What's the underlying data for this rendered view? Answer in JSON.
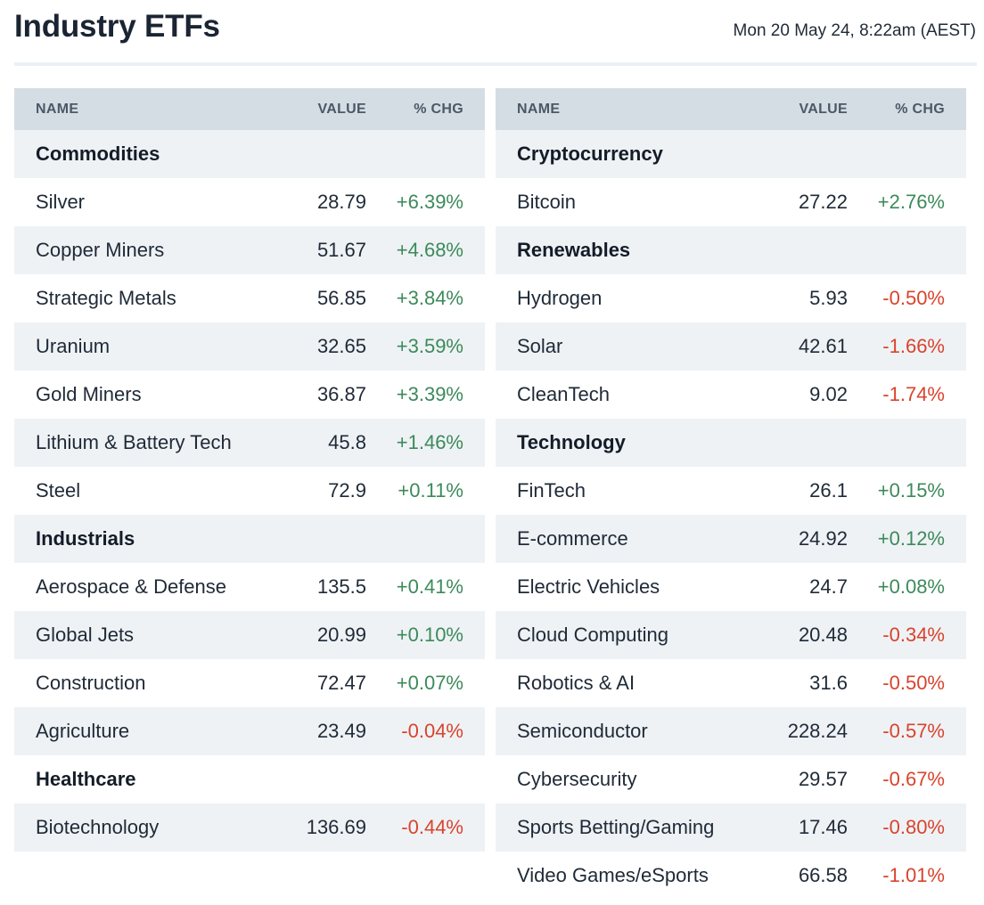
{
  "header": {
    "title": "Industry ETFs",
    "timestamp": "Mon 20 May 24, 8:22am (AEST)"
  },
  "columns": {
    "name": "NAME",
    "value": "VALUE",
    "chg": "% CHG"
  },
  "colors": {
    "positive": "#3c8a5a",
    "negative": "#d9432d",
    "header_bg": "#d5dde4",
    "row_shade": "#eef2f5"
  },
  "left": [
    {
      "type": "group",
      "name": "Commodities"
    },
    {
      "type": "item",
      "name": "Silver",
      "value": "28.79",
      "chg": "+6.39%"
    },
    {
      "type": "item",
      "name": "Copper Miners",
      "value": "51.67",
      "chg": "+4.68%"
    },
    {
      "type": "item",
      "name": "Strategic Metals",
      "value": "56.85",
      "chg": "+3.84%"
    },
    {
      "type": "item",
      "name": "Uranium",
      "value": "32.65",
      "chg": "+3.59%"
    },
    {
      "type": "item",
      "name": "Gold Miners",
      "value": "36.87",
      "chg": "+3.39%"
    },
    {
      "type": "item",
      "name": "Lithium & Battery Tech",
      "value": "45.8",
      "chg": "+1.46%"
    },
    {
      "type": "item",
      "name": "Steel",
      "value": "72.9",
      "chg": "+0.11%"
    },
    {
      "type": "group",
      "name": "Industrials"
    },
    {
      "type": "item",
      "name": "Aerospace & Defense",
      "value": "135.5",
      "chg": "+0.41%"
    },
    {
      "type": "item",
      "name": "Global Jets",
      "value": "20.99",
      "chg": "+0.10%"
    },
    {
      "type": "item",
      "name": "Construction",
      "value": "72.47",
      "chg": "+0.07%"
    },
    {
      "type": "item",
      "name": "Agriculture",
      "value": "23.49",
      "chg": "-0.04%"
    },
    {
      "type": "group",
      "name": "Healthcare"
    },
    {
      "type": "item",
      "name": "Biotechnology",
      "value": "136.69",
      "chg": "-0.44%"
    }
  ],
  "right": [
    {
      "type": "group",
      "name": "Cryptocurrency"
    },
    {
      "type": "item",
      "name": "Bitcoin",
      "value": "27.22",
      "chg": "+2.76%"
    },
    {
      "type": "group",
      "name": "Renewables"
    },
    {
      "type": "item",
      "name": "Hydrogen",
      "value": "5.93",
      "chg": "-0.50%"
    },
    {
      "type": "item",
      "name": "Solar",
      "value": "42.61",
      "chg": "-1.66%"
    },
    {
      "type": "item",
      "name": "CleanTech",
      "value": "9.02",
      "chg": "-1.74%"
    },
    {
      "type": "group",
      "name": "Technology"
    },
    {
      "type": "item",
      "name": "FinTech",
      "value": "26.1",
      "chg": "+0.15%"
    },
    {
      "type": "item",
      "name": "E-commerce",
      "value": "24.92",
      "chg": "+0.12%"
    },
    {
      "type": "item",
      "name": "Electric Vehicles",
      "value": "24.7",
      "chg": "+0.08%"
    },
    {
      "type": "item",
      "name": "Cloud Computing",
      "value": "20.48",
      "chg": "-0.34%"
    },
    {
      "type": "item",
      "name": "Robotics & AI",
      "value": "31.6",
      "chg": "-0.50%"
    },
    {
      "type": "item",
      "name": "Semiconductor",
      "value": "228.24",
      "chg": "-0.57%"
    },
    {
      "type": "item",
      "name": "Cybersecurity",
      "value": "29.57",
      "chg": "-0.67%"
    },
    {
      "type": "item",
      "name": "Sports Betting/Gaming",
      "value": "17.46",
      "chg": "-0.80%"
    },
    {
      "type": "item",
      "name": "Video Games/eSports",
      "value": "66.58",
      "chg": "-1.01%"
    }
  ]
}
